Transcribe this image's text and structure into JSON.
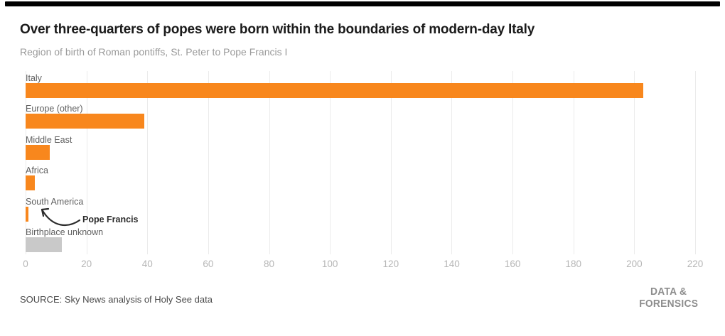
{
  "page": {
    "top_bar_color": "#000000",
    "background": "#ffffff"
  },
  "header": {
    "title": "Over three-quarters of popes were born within the boundaries of modern-day Italy",
    "subtitle": "Region of birth of Roman pontiffs, St. Peter to Pope Francis I"
  },
  "chart_data": {
    "type": "bar",
    "orientation": "horizontal",
    "title": "Over three-quarters of popes were born within the boundaries of modern-day Italy",
    "subtitle": "Region of birth of Roman pontiffs, St. Peter to Pope Francis I",
    "categories": [
      "Italy",
      "Europe (other)",
      "Middle East",
      "Africa",
      "South America",
      "Birthplace unknown"
    ],
    "values": [
      203,
      39,
      8,
      3,
      1,
      12
    ],
    "bar_colors": [
      "#F8871D",
      "#F8871D",
      "#F8871D",
      "#F8871D",
      "#F8871D",
      "#C9C9C9"
    ],
    "xlim": [
      0,
      220
    ],
    "x_ticks": [
      0,
      20,
      40,
      60,
      80,
      100,
      120,
      140,
      160,
      180,
      200,
      220
    ],
    "grid": "vertical",
    "legend": "none",
    "annotation": {
      "text": "Pope Francis",
      "target_category": "South America",
      "target_value": 1
    }
  },
  "footer": {
    "source": "SOURCE: Sky News analysis of Holy See data",
    "logo_line1": "DATA &",
    "logo_line2": "FORENSICS"
  },
  "colors": {
    "orange": "#F8871D",
    "gray_bar": "#C9C9C9",
    "grid": "#EBEBEB",
    "title_text": "#1A1A1A",
    "subtitle_text": "#9A9A9A",
    "category_label": "#606060",
    "tick_label": "#B6B6B6",
    "source_text": "#4A4A4A",
    "logo_text": "#8D8D8D",
    "annotation_text": "#2B2B2B"
  }
}
